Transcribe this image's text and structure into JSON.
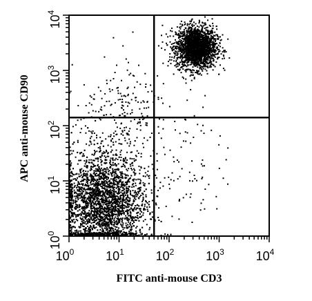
{
  "chart_data": {
    "type": "scatter",
    "title": "",
    "xlabel": "FITC anti-mouse CD3",
    "ylabel": "APC anti-mouse CD90",
    "x_scale": "log",
    "y_scale": "log",
    "xlim": [
      1,
      10000
    ],
    "ylim": [
      1,
      10000
    ],
    "x_ticks": [
      {
        "base": "10",
        "exp": "0",
        "value": 1
      },
      {
        "base": "10",
        "exp": "1",
        "value": 10
      },
      {
        "base": "10",
        "exp": "2",
        "value": 100
      },
      {
        "base": "10",
        "exp": "3",
        "value": 1000
      },
      {
        "base": "10",
        "exp": "4",
        "value": 10000
      }
    ],
    "y_ticks": [
      {
        "base": "10",
        "exp": "0",
        "value": 1
      },
      {
        "base": "10",
        "exp": "1",
        "value": 10
      },
      {
        "base": "10",
        "exp": "2",
        "value": 100
      },
      {
        "base": "10",
        "exp": "3",
        "value": 1000
      },
      {
        "base": "10",
        "exp": "4",
        "value": 10000
      }
    ],
    "quadrant_gates": {
      "x": 50,
      "y": 140
    },
    "grid": false,
    "point_color": "#000000",
    "populations": [
      {
        "center_x": 350,
        "center_y": 2600,
        "spread_log_x": 0.2,
        "spread_log_y": 0.19,
        "count": 2200
      },
      {
        "center_x": 5,
        "center_y": 4,
        "spread_log_x": 0.42,
        "spread_log_y": 0.45,
        "count": 3600
      },
      {
        "center_x": 10,
        "center_y": 150,
        "spread_log_x": 0.45,
        "spread_log_y": 0.55,
        "count": 260
      },
      {
        "center_x": 250,
        "center_y": 20,
        "spread_log_x": 0.35,
        "spread_log_y": 0.6,
        "count": 80
      }
    ]
  }
}
